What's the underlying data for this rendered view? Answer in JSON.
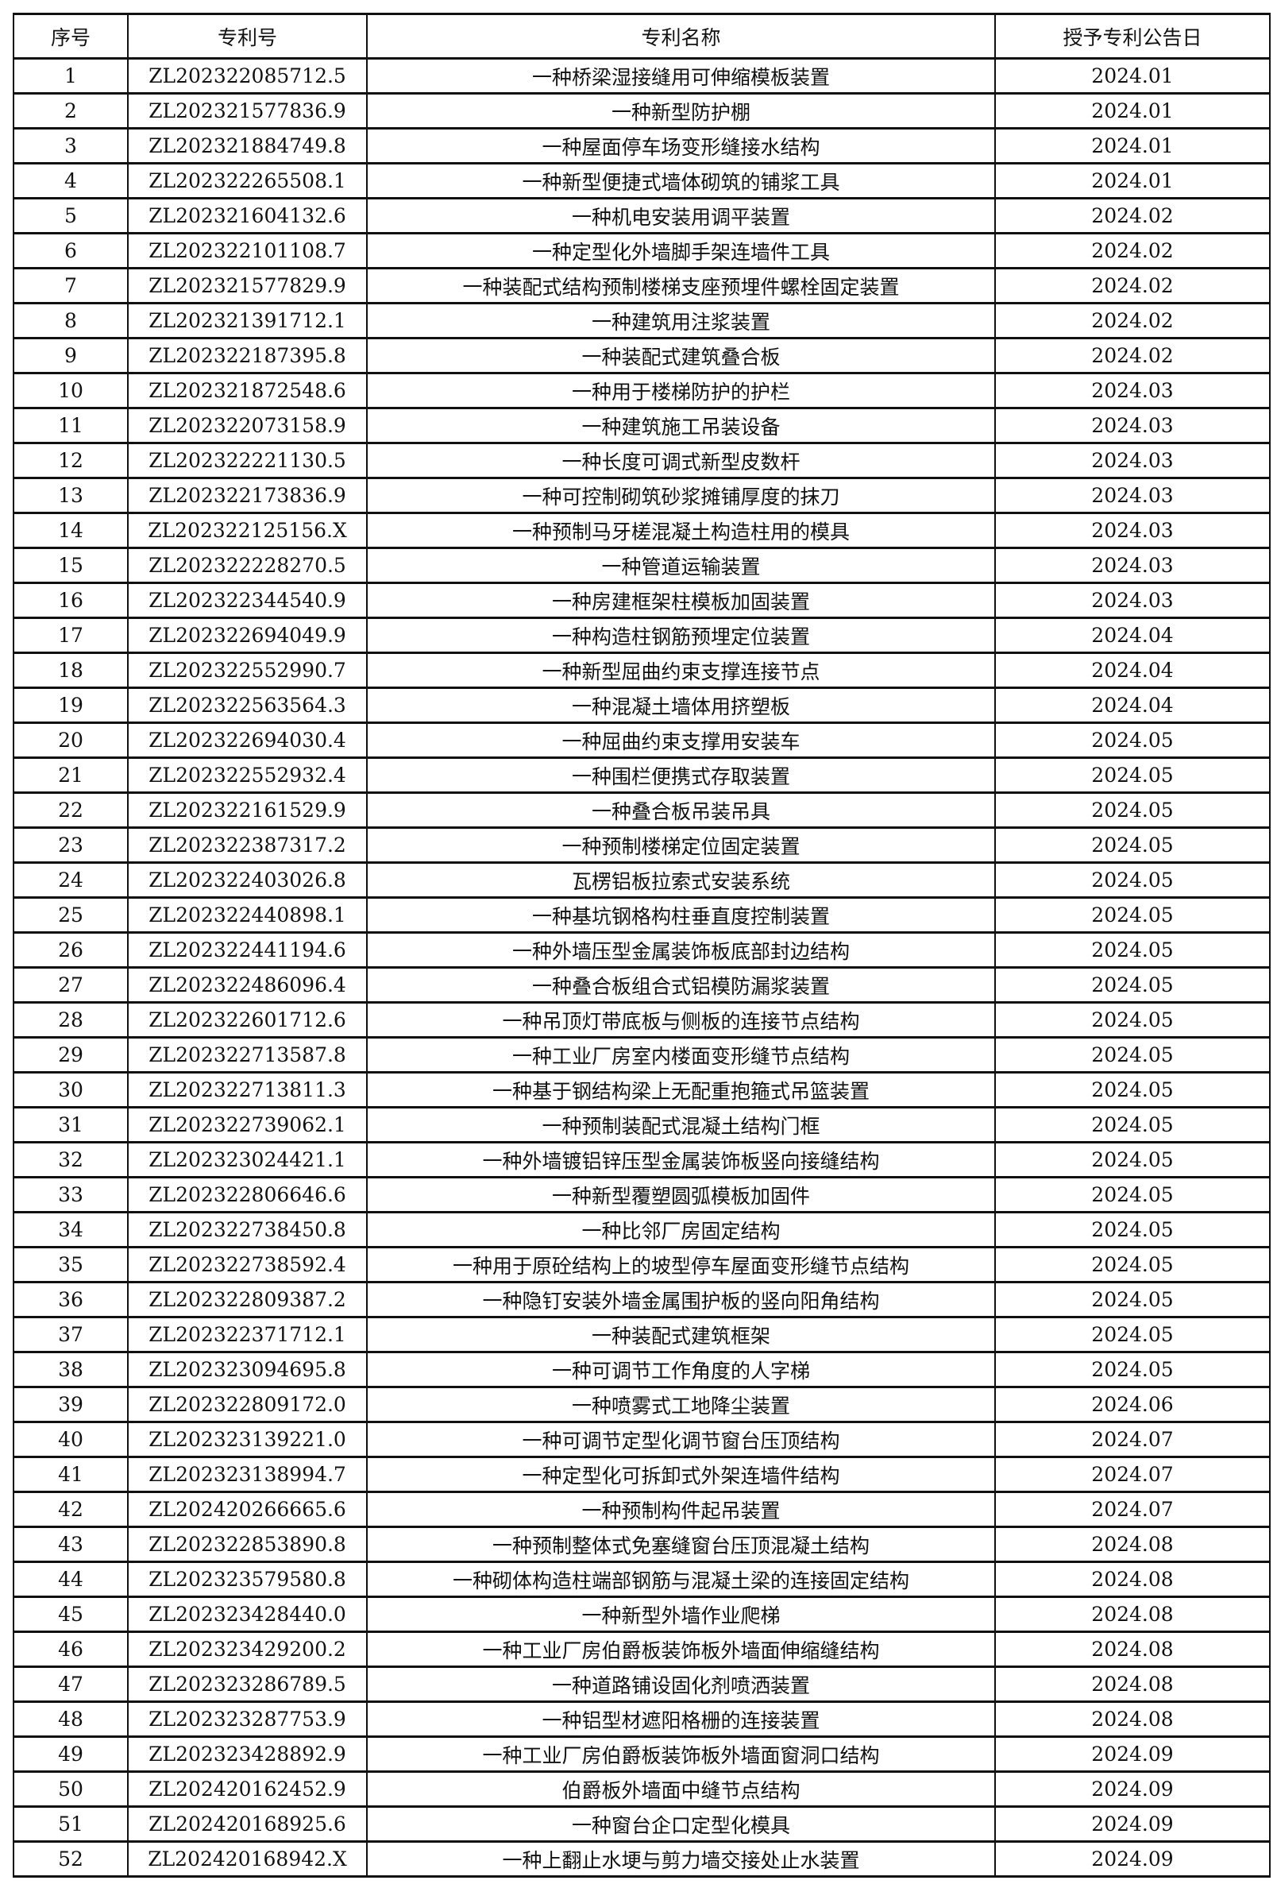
{
  "table": {
    "headers": [
      "序号",
      "专利号",
      "专利名称",
      "授予专利公告日"
    ],
    "rows": [
      [
        "1",
        "ZL202322085712.5",
        "一种桥梁湿接缝用可伸缩模板装置",
        "2024.01"
      ],
      [
        "2",
        "ZL202321577836.9",
        "一种新型防护棚",
        "2024.01"
      ],
      [
        "3",
        "ZL202321884749.8",
        "一种屋面停车场变形缝接水结构",
        "2024.01"
      ],
      [
        "4",
        "ZL202322265508.1",
        "一种新型便捷式墙体砌筑的铺浆工具",
        "2024.01"
      ],
      [
        "5",
        "ZL202321604132.6",
        "一种机电安装用调平装置",
        "2024.02"
      ],
      [
        "6",
        "ZL202322101108.7",
        "一种定型化外墙脚手架连墙件工具",
        "2024.02"
      ],
      [
        "7",
        "ZL202321577829.9",
        "一种装配式结构预制楼梯支座预埋件螺栓固定装置",
        "2024.02"
      ],
      [
        "8",
        "ZL202321391712.1",
        "一种建筑用注浆装置",
        "2024.02"
      ],
      [
        "9",
        "ZL202322187395.8",
        "一种装配式建筑叠合板",
        "2024.02"
      ],
      [
        "10",
        "ZL202321872548.6",
        "一种用于楼梯防护的护栏",
        "2024.03"
      ],
      [
        "11",
        "ZL202322073158.9",
        "一种建筑施工吊装设备",
        "2024.03"
      ],
      [
        "12",
        "ZL202322221130.5",
        "一种长度可调式新型皮数杆",
        "2024.03"
      ],
      [
        "13",
        "ZL202322173836.9",
        "一种可控制砌筑砂浆摊铺厚度的抹刀",
        "2024.03"
      ],
      [
        "14",
        "ZL202322125156.X",
        "一种预制马牙槎混凝土构造柱用的模具",
        "2024.03"
      ],
      [
        "15",
        "ZL202322228270.5",
        "一种管道运输装置",
        "2024.03"
      ],
      [
        "16",
        "ZL202322344540.9",
        "一种房建框架柱模板加固装置",
        "2024.03"
      ],
      [
        "17",
        "ZL202322694049.9",
        "一种构造柱钢筋预埋定位装置",
        "2024.04"
      ],
      [
        "18",
        "ZL202322552990.7",
        "一种新型屈曲约束支撑连接节点",
        "2024.04"
      ],
      [
        "19",
        "ZL202322563564.3",
        "一种混凝土墙体用挤塑板",
        "2024.04"
      ],
      [
        "20",
        "ZL202322694030.4",
        "一种屈曲约束支撑用安装车",
        "2024.05"
      ],
      [
        "21",
        "ZL202322552932.4",
        "一种围栏便携式存取装置",
        "2024.05"
      ],
      [
        "22",
        "ZL202322161529.9",
        "一种叠合板吊装吊具",
        "2024.05"
      ],
      [
        "23",
        "ZL202322387317.2",
        "一种预制楼梯定位固定装置",
        "2024.05"
      ],
      [
        "24",
        "ZL202322403026.8",
        "瓦楞铝板拉索式安装系统",
        "2024.05"
      ],
      [
        "25",
        "ZL202322440898.1",
        "一种基坑钢格构柱垂直度控制装置",
        "2024.05"
      ],
      [
        "26",
        "ZL202322441194.6",
        "一种外墙压型金属装饰板底部封边结构",
        "2024.05"
      ],
      [
        "27",
        "ZL202322486096.4",
        "一种叠合板组合式铝模防漏浆装置",
        "2024.05"
      ],
      [
        "28",
        "ZL202322601712.6",
        "一种吊顶灯带底板与侧板的连接节点结构",
        "2024.05"
      ],
      [
        "29",
        "ZL202322713587.8",
        "一种工业厂房室内楼面变形缝节点结构",
        "2024.05"
      ],
      [
        "30",
        "ZL202322713811.3",
        "一种基于钢结构梁上无配重抱箍式吊篮装置",
        "2024.05"
      ],
      [
        "31",
        "ZL202322739062.1",
        "一种预制装配式混凝土结构门框",
        "2024.05"
      ],
      [
        "32",
        "ZL202323024421.1",
        "一种外墙镀铝锌压型金属装饰板竖向接缝结构",
        "2024.05"
      ],
      [
        "33",
        "ZL202322806646.6",
        "一种新型覆塑圆弧模板加固件",
        "2024.05"
      ],
      [
        "34",
        "ZL202322738450.8",
        "一种比邻厂房固定结构",
        "2024.05"
      ],
      [
        "35",
        "ZL202322738592.4",
        "一种用于原砼结构上的坡型停车屋面变形缝节点结构",
        "2024.05"
      ],
      [
        "36",
        "ZL202322809387.2",
        "一种隐钉安装外墙金属围护板的竖向阳角结构",
        "2024.05"
      ],
      [
        "37",
        "ZL202322371712.1",
        "一种装配式建筑框架",
        "2024.05"
      ],
      [
        "38",
        "ZL202323094695.8",
        "一种可调节工作角度的人字梯",
        "2024.05"
      ],
      [
        "39",
        "ZL202322809172.0",
        "一种喷雾式工地降尘装置",
        "2024.06"
      ],
      [
        "40",
        "ZL202323139221.0",
        "一种可调节定型化调节窗台压顶结构",
        "2024.07"
      ],
      [
        "41",
        "ZL202323138994.7",
        "一种定型化可拆卸式外架连墙件结构",
        "2024.07"
      ],
      [
        "42",
        "ZL202420266665.6",
        "一种预制构件起吊装置",
        "2024.07"
      ],
      [
        "43",
        "ZL202322853890.8",
        "一种预制整体式免塞缝窗台压顶混凝土结构",
        "2024.08"
      ],
      [
        "44",
        "ZL202323579580.8",
        "一种砌体构造柱端部钢筋与混凝土梁的连接固定结构",
        "2024.08"
      ],
      [
        "45",
        "ZL202323428440.0",
        "一种新型外墙作业爬梯",
        "2024.08"
      ],
      [
        "46",
        "ZL202323429200.2",
        "一种工业厂房伯爵板装饰板外墙面伸缩缝结构",
        "2024.08"
      ],
      [
        "47",
        "ZL202323286789.5",
        "一种道路铺设固化剂喷洒装置",
        "2024.08"
      ],
      [
        "48",
        "ZL202323287753.9",
        "一种铝型材遮阳格栅的连接装置",
        "2024.08"
      ],
      [
        "49",
        "ZL202323428892.9",
        "一种工业厂房伯爵板装饰板外墙面窗洞口结构",
        "2024.09"
      ],
      [
        "50",
        "ZL202420162452.9",
        "伯爵板外墙面中缝节点结构",
        "2024.09"
      ],
      [
        "51",
        "ZL202420168925.6",
        "一种窗台企口定型化模具",
        "2024.09"
      ],
      [
        "52",
        "ZL202420168942.X",
        "一种上翻止水埂与剪力墙交接处止水装置",
        "2024.09"
      ]
    ]
  }
}
